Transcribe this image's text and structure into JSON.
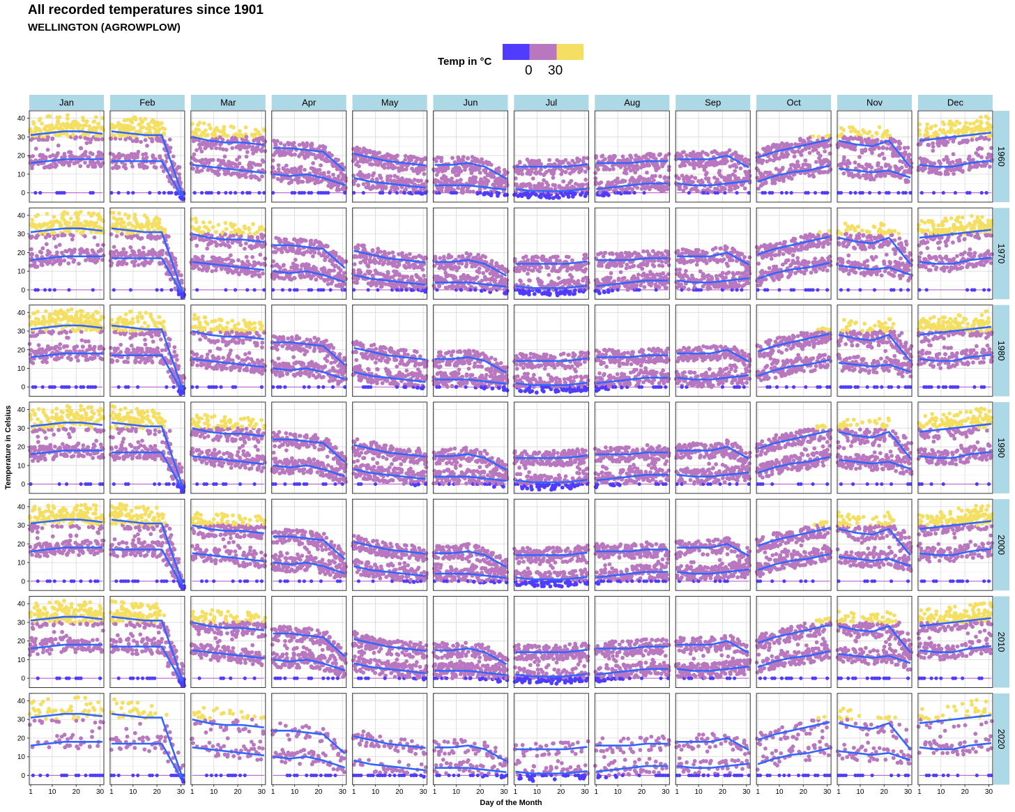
{
  "title": "All recorded temperatures since 1901",
  "subtitle": "WELLINGTON (AGROWPLOW)",
  "legend": {
    "title": "Temp in °C",
    "tick_low": "0",
    "tick_high": "30",
    "colors": [
      "#4f3cff",
      "#b977bf",
      "#f5df62"
    ]
  },
  "colors": {
    "strip_fill": "#add8e6",
    "panel_border": "#333333",
    "grid": "#d9d9d9",
    "smooth_line": "#3366ff",
    "zero_line": "#b94fd0",
    "cold": "#4f3cff",
    "mild": "#b977bf",
    "hot": "#f5df62"
  },
  "chart_data": {
    "type": "scatter",
    "facet_columns": [
      "Jan",
      "Feb",
      "Mar",
      "Apr",
      "May",
      "Jun",
      "Jul",
      "Aug",
      "Sep",
      "Oct",
      "Nov",
      "Dec"
    ],
    "facet_rows": [
      "1960",
      "1970",
      "1980",
      "1990",
      "2000",
      "2010",
      "2020"
    ],
    "xlabel": "Day of the Month",
    "ylabel": "Temperature in Celsius",
    "x_ticks": [
      "1",
      "10",
      "20",
      "30"
    ],
    "x_tick_values": [
      1,
      10,
      20,
      30
    ],
    "y_ticks": [
      "0",
      "10",
      "20",
      "30",
      "40"
    ],
    "y_tick_values": [
      0,
      10,
      20,
      30,
      40
    ],
    "xlim": [
      1,
      31
    ],
    "ylim": [
      -5,
      44
    ],
    "smooth_lines": {
      "description": "two smoothed lines per panel: mean daily max (upper) and mean daily min (lower), values at days 1,8,15,22,29",
      "upper_by_month": [
        [
          31,
          32,
          33,
          33,
          32
        ],
        [
          33,
          32,
          31,
          31,
          5
        ],
        [
          30,
          28,
          27,
          27,
          26
        ],
        [
          24,
          24,
          23,
          22,
          14
        ],
        [
          21,
          19,
          17,
          16,
          15
        ],
        [
          15,
          15,
          16,
          14,
          9
        ],
        [
          14,
          14,
          14,
          14,
          15
        ],
        [
          16,
          16,
          16,
          17,
          17
        ],
        [
          18,
          18,
          18,
          20,
          15
        ],
        [
          19,
          22,
          24,
          26,
          28
        ],
        [
          28,
          26,
          25,
          28,
          17
        ],
        [
          28,
          29,
          30,
          31,
          32
        ]
      ],
      "lower_by_month": [
        [
          16,
          17,
          18,
          18,
          18
        ],
        [
          17,
          17,
          17,
          17,
          1
        ],
        [
          15,
          14,
          13,
          12,
          11
        ],
        [
          10,
          9,
          10,
          8,
          5
        ],
        [
          8,
          6,
          5,
          4,
          3
        ],
        [
          4,
          4,
          4,
          3,
          2
        ],
        [
          2,
          1,
          1,
          1,
          2
        ],
        [
          2,
          3,
          4,
          5,
          5
        ],
        [
          5,
          4,
          4,
          5,
          6
        ],
        [
          6,
          9,
          11,
          12,
          14
        ],
        [
          13,
          12,
          11,
          12,
          9
        ],
        [
          15,
          14,
          14,
          16,
          17
        ]
      ]
    },
    "color_scale": {
      "low": 0,
      "high": 30,
      "bins": [
        "below 0 → blue",
        "0–30 → purple",
        "above 30 → yellow"
      ]
    }
  }
}
